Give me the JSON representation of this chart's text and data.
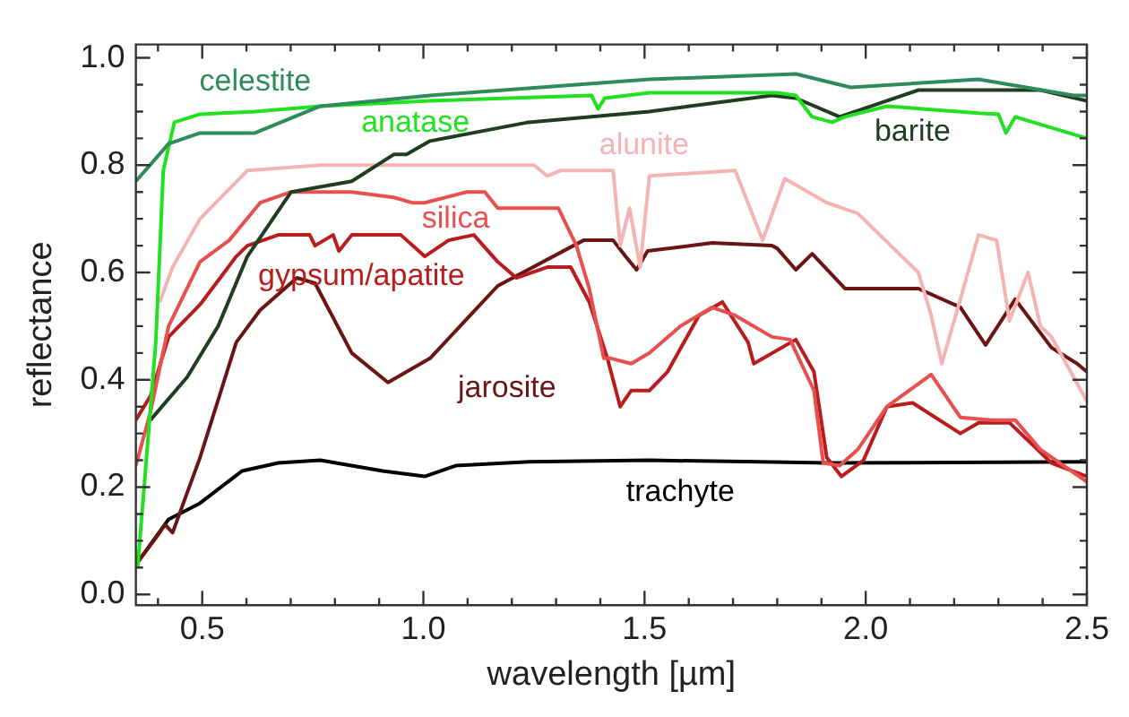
{
  "chart_data": {
    "type": "line",
    "xlabel": "wavelength [µm]",
    "ylabel": "reflectance",
    "xlim": [
      0.35,
      2.5
    ],
    "ylim": [
      -0.02,
      1.025
    ],
    "xticks": [
      {
        "value": 0.4,
        "label": null
      },
      0.5,
      {
        "value": 0.6,
        "label": null
      },
      {
        "value": 0.7,
        "label": null
      },
      {
        "value": 0.8,
        "label": null
      },
      {
        "value": 0.9,
        "label": null
      },
      {
        "value": 1.0,
        "label": "1.0"
      },
      {
        "value": 1.1,
        "label": null
      },
      {
        "value": 1.2,
        "label": null
      },
      {
        "value": 1.3,
        "label": null
      },
      {
        "value": 1.4,
        "label": null
      },
      1.5,
      {
        "value": 1.6,
        "label": null
      },
      {
        "value": 1.7,
        "label": null
      },
      {
        "value": 1.8,
        "label": null
      },
      {
        "value": 1.9,
        "label": null
      },
      {
        "value": 2.0,
        "label": "2.0"
      },
      {
        "value": 2.1,
        "label": null
      },
      {
        "value": 2.2,
        "label": null
      },
      {
        "value": 2.3,
        "label": null
      },
      {
        "value": 2.4,
        "label": null
      },
      2.5
    ],
    "yticks": [
      {
        "value": 0,
        "label": "0.0"
      },
      {
        "value": 0.05,
        "label": null
      },
      {
        "value": 0.1,
        "label": null
      },
      {
        "value": 0.15,
        "label": null
      },
      0.2,
      {
        "value": 0.25,
        "label": null
      },
      {
        "value": 0.3,
        "label": null
      },
      {
        "value": 0.35,
        "label": null
      },
      0.4,
      {
        "value": 0.45,
        "label": null
      },
      {
        "value": 0.5,
        "label": null
      },
      {
        "value": 0.55,
        "label": null
      },
      0.6,
      {
        "value": 0.65,
        "label": null
      },
      {
        "value": 0.7,
        "label": null
      },
      {
        "value": 0.75,
        "label": null
      },
      0.8,
      {
        "value": 0.85,
        "label": null
      },
      {
        "value": 0.9,
        "label": null
      },
      {
        "value": 0.95,
        "label": null
      },
      {
        "value": 1.0,
        "label": "1.0"
      }
    ],
    "grid": false,
    "legend": false,
    "marker": "none",
    "line_style": "solid",
    "series": [
      {
        "name": "celestite",
        "color": "#2e8b5a",
        "x": [
          0.35,
          0.424,
          0.495,
          0.619,
          0.767,
          1.015,
          1.511,
          1.842,
          1.966,
          2.255,
          2.47,
          2.5
        ],
        "values": [
          0.77,
          0.84,
          0.86,
          0.86,
          0.91,
          0.93,
          0.96,
          0.97,
          0.945,
          0.96,
          0.93,
          0.93
        ]
      },
      {
        "name": "anatase",
        "color": "#22e022",
        "x": [
          0.354,
          0.395,
          0.412,
          0.437,
          0.495,
          0.619,
          0.767,
          1.015,
          1.38,
          1.395,
          1.41,
          1.511,
          1.8,
          1.842,
          1.879,
          1.924,
          1.953,
          2.048,
          2.255,
          2.3,
          2.317,
          2.338,
          2.5
        ],
        "values": [
          0.05,
          0.47,
          0.79,
          0.88,
          0.895,
          0.9,
          0.91,
          0.92,
          0.93,
          0.905,
          0.925,
          0.935,
          0.935,
          0.93,
          0.89,
          0.88,
          0.89,
          0.91,
          0.897,
          0.895,
          0.86,
          0.89,
          0.85
        ]
      },
      {
        "name": "barite",
        "color": "#1f3d1f",
        "x": [
          0.383,
          0.466,
          0.536,
          0.602,
          0.701,
          0.838,
          0.933,
          0.962,
          1.015,
          1.238,
          1.511,
          1.788,
          1.842,
          1.941,
          2.119,
          2.395,
          2.5
        ],
        "values": [
          0.325,
          0.405,
          0.5,
          0.63,
          0.75,
          0.77,
          0.82,
          0.82,
          0.845,
          0.88,
          0.9,
          0.93,
          0.925,
          0.89,
          0.94,
          0.94,
          0.92
        ]
      },
      {
        "name": "alunite",
        "color": "#f4b4b4",
        "x": [
          0.404,
          0.433,
          0.495,
          0.602,
          0.767,
          1.015,
          1.25,
          1.28,
          1.31,
          1.429,
          1.445,
          1.466,
          1.49,
          1.511,
          1.705,
          1.767,
          1.817,
          1.912,
          1.982,
          2.119,
          2.148,
          2.172,
          2.214,
          2.255,
          2.296,
          2.325,
          2.367,
          2.395,
          2.42,
          2.5
        ],
        "values": [
          0.545,
          0.61,
          0.7,
          0.79,
          0.8,
          0.8,
          0.8,
          0.78,
          0.79,
          0.79,
          0.65,
          0.72,
          0.61,
          0.78,
          0.79,
          0.66,
          0.775,
          0.73,
          0.71,
          0.6,
          0.52,
          0.43,
          0.55,
          0.67,
          0.66,
          0.51,
          0.6,
          0.5,
          0.48,
          0.36
        ]
      },
      {
        "name": "silica",
        "color": "#e85050",
        "x": [
          0.35,
          0.383,
          0.424,
          0.495,
          0.561,
          0.631,
          0.701,
          0.838,
          0.933,
          0.974,
          1.003,
          1.098,
          1.139,
          1.168,
          1.305,
          1.346,
          1.375,
          1.408,
          1.424,
          1.47,
          1.511,
          1.581,
          1.652,
          1.705,
          1.788,
          1.829,
          1.883,
          1.904,
          1.941,
          1.982,
          2.048,
          2.148,
          2.214,
          2.284,
          2.338,
          2.395,
          2.5
        ],
        "values": [
          0.24,
          0.34,
          0.5,
          0.62,
          0.66,
          0.73,
          0.75,
          0.75,
          0.74,
          0.73,
          0.73,
          0.75,
          0.75,
          0.72,
          0.72,
          0.65,
          0.57,
          0.44,
          0.44,
          0.43,
          0.45,
          0.5,
          0.535,
          0.52,
          0.48,
          0.475,
          0.38,
          0.245,
          0.24,
          0.27,
          0.35,
          0.41,
          0.33,
          0.325,
          0.325,
          0.27,
          0.21
        ]
      },
      {
        "name": "gypsum/apatite",
        "color": "#b81c1c",
        "x": [
          0.35,
          0.383,
          0.424,
          0.495,
          0.577,
          0.602,
          0.672,
          0.743,
          0.755,
          0.796,
          0.809,
          0.838,
          0.949,
          1.003,
          1.057,
          1.114,
          1.168,
          1.21,
          1.28,
          1.333,
          1.375,
          1.416,
          1.445,
          1.47,
          1.511,
          1.552,
          1.623,
          1.676,
          1.734,
          1.747,
          1.842,
          1.883,
          1.912,
          1.945,
          1.995,
          2.048,
          2.106,
          2.214,
          2.255,
          2.325,
          2.42,
          2.5
        ],
        "values": [
          0.325,
          0.37,
          0.48,
          0.54,
          0.63,
          0.65,
          0.67,
          0.67,
          0.65,
          0.67,
          0.64,
          0.67,
          0.67,
          0.63,
          0.66,
          0.67,
          0.62,
          0.59,
          0.61,
          0.61,
          0.545,
          0.44,
          0.35,
          0.38,
          0.38,
          0.415,
          0.52,
          0.545,
          0.47,
          0.43,
          0.475,
          0.415,
          0.255,
          0.22,
          0.25,
          0.35,
          0.357,
          0.3,
          0.32,
          0.32,
          0.245,
          0.22
        ]
      },
      {
        "name": "jarosite",
        "color": "#6b1414",
        "x": [
          0.354,
          0.395,
          0.416,
          0.433,
          0.495,
          0.577,
          0.631,
          0.714,
          0.755,
          0.838,
          0.92,
          1.015,
          1.168,
          1.362,
          1.429,
          1.457,
          1.482,
          1.507,
          1.652,
          1.788,
          1.8,
          1.842,
          1.879,
          1.953,
          2.119,
          2.214,
          2.271,
          2.338,
          2.42,
          2.478,
          2.5
        ],
        "values": [
          0.06,
          0.105,
          0.13,
          0.115,
          0.255,
          0.47,
          0.53,
          0.59,
          0.58,
          0.45,
          0.395,
          0.44,
          0.575,
          0.66,
          0.66,
          0.63,
          0.605,
          0.64,
          0.655,
          0.65,
          0.645,
          0.605,
          0.635,
          0.57,
          0.57,
          0.535,
          0.465,
          0.55,
          0.46,
          0.43,
          0.415
        ]
      },
      {
        "name": "trachyte",
        "color": "#000000",
        "x": [
          0.354,
          0.424,
          0.495,
          0.59,
          0.672,
          0.767,
          0.908,
          1.003,
          1.073,
          1.238,
          1.511,
          1.759,
          1.912,
          2.5
        ],
        "values": [
          0.06,
          0.14,
          0.17,
          0.23,
          0.245,
          0.25,
          0.23,
          0.22,
          0.24,
          0.247,
          0.25,
          0.247,
          0.245,
          0.247
        ]
      }
    ]
  }
}
